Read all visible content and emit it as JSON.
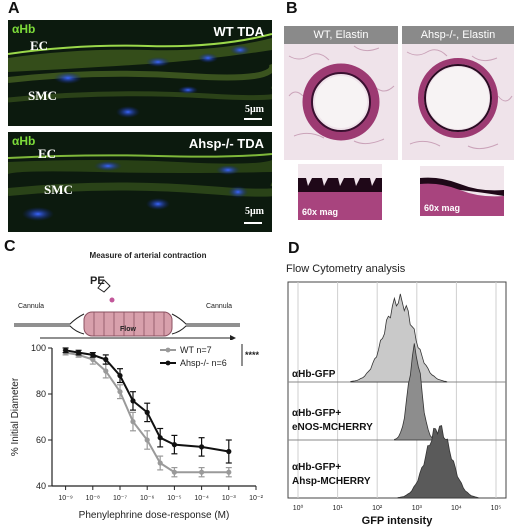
{
  "panels": {
    "A": {
      "letter": "A",
      "top": {
        "title": "WT TDA",
        "stain": "αHb",
        "ec": "EC",
        "smc": "SMC",
        "scale": "5μm"
      },
      "bottom": {
        "title": "Ahsp-/- TDA",
        "stain": "αHb",
        "ec": "EC",
        "smc": "SMC",
        "scale": "5μm"
      }
    },
    "B": {
      "letter": "B",
      "left": {
        "caption": "WT, Elastin",
        "zoom": "60x mag"
      },
      "right": {
        "caption": "Ahsp-/-, Elastin",
        "zoom": "60x mag"
      }
    },
    "C": {
      "letter": "C",
      "schematic_title": "Measure of arterial contraction",
      "pe": "PE",
      "cannula_left": "Cannula",
      "cannula_right": "Cannula",
      "flow": "Flow",
      "significance": "****"
    },
    "D": {
      "letter": "D",
      "title": "Flow Cytometry analysis",
      "row1": "αHb-GFP",
      "row2a": "αHb-GFP+",
      "row2b": "eNOS-MCHERRY",
      "row3a": "αHb-GFP+",
      "row3b": "Ahsp-MCHERRY",
      "xlabel": "GFP intensity",
      "xticks": [
        "10⁰",
        "10¹",
        "10²",
        "10³",
        "10⁴",
        "10⁵"
      ],
      "colors": {
        "light": "#c9c9c9",
        "mid": "#8d8d8d",
        "dark": "#5a5a5a"
      }
    }
  },
  "chart_data": {
    "type": "line",
    "xlabel": "Phenylephrine dose-response (M)",
    "ylabel": "% Initial Diameter",
    "x_scale": "log",
    "xticks": [
      "10⁻⁹",
      "10⁻⁸",
      "10⁻⁷",
      "10⁻⁶",
      "10⁻⁵",
      "10⁻⁴",
      "10⁻³",
      "10⁻²"
    ],
    "ylim": [
      40,
      100
    ],
    "yticks": [
      40,
      60,
      80,
      100
    ],
    "x": [
      1e-09,
      3e-09,
      1e-08,
      3e-08,
      1e-07,
      3e-07,
      1e-06,
      3e-06,
      1e-05,
      0.0001,
      0.001
    ],
    "series": [
      {
        "name": "WT n=7",
        "color": "#9a9a9a",
        "values": [
          98,
          97,
          95,
          90,
          81,
          68,
          60,
          50,
          46,
          46,
          46
        ],
        "errors": [
          1,
          1,
          2,
          3,
          3,
          4,
          4,
          3,
          2,
          2,
          2
        ]
      },
      {
        "name": "Ahsp-/- n=6",
        "color": "#111111",
        "values": [
          99,
          98,
          97,
          95,
          88,
          77,
          72,
          61,
          58,
          57,
          55
        ],
        "errors": [
          1,
          1,
          1,
          2,
          3,
          4,
          4,
          4,
          4,
          4,
          5
        ]
      }
    ]
  }
}
